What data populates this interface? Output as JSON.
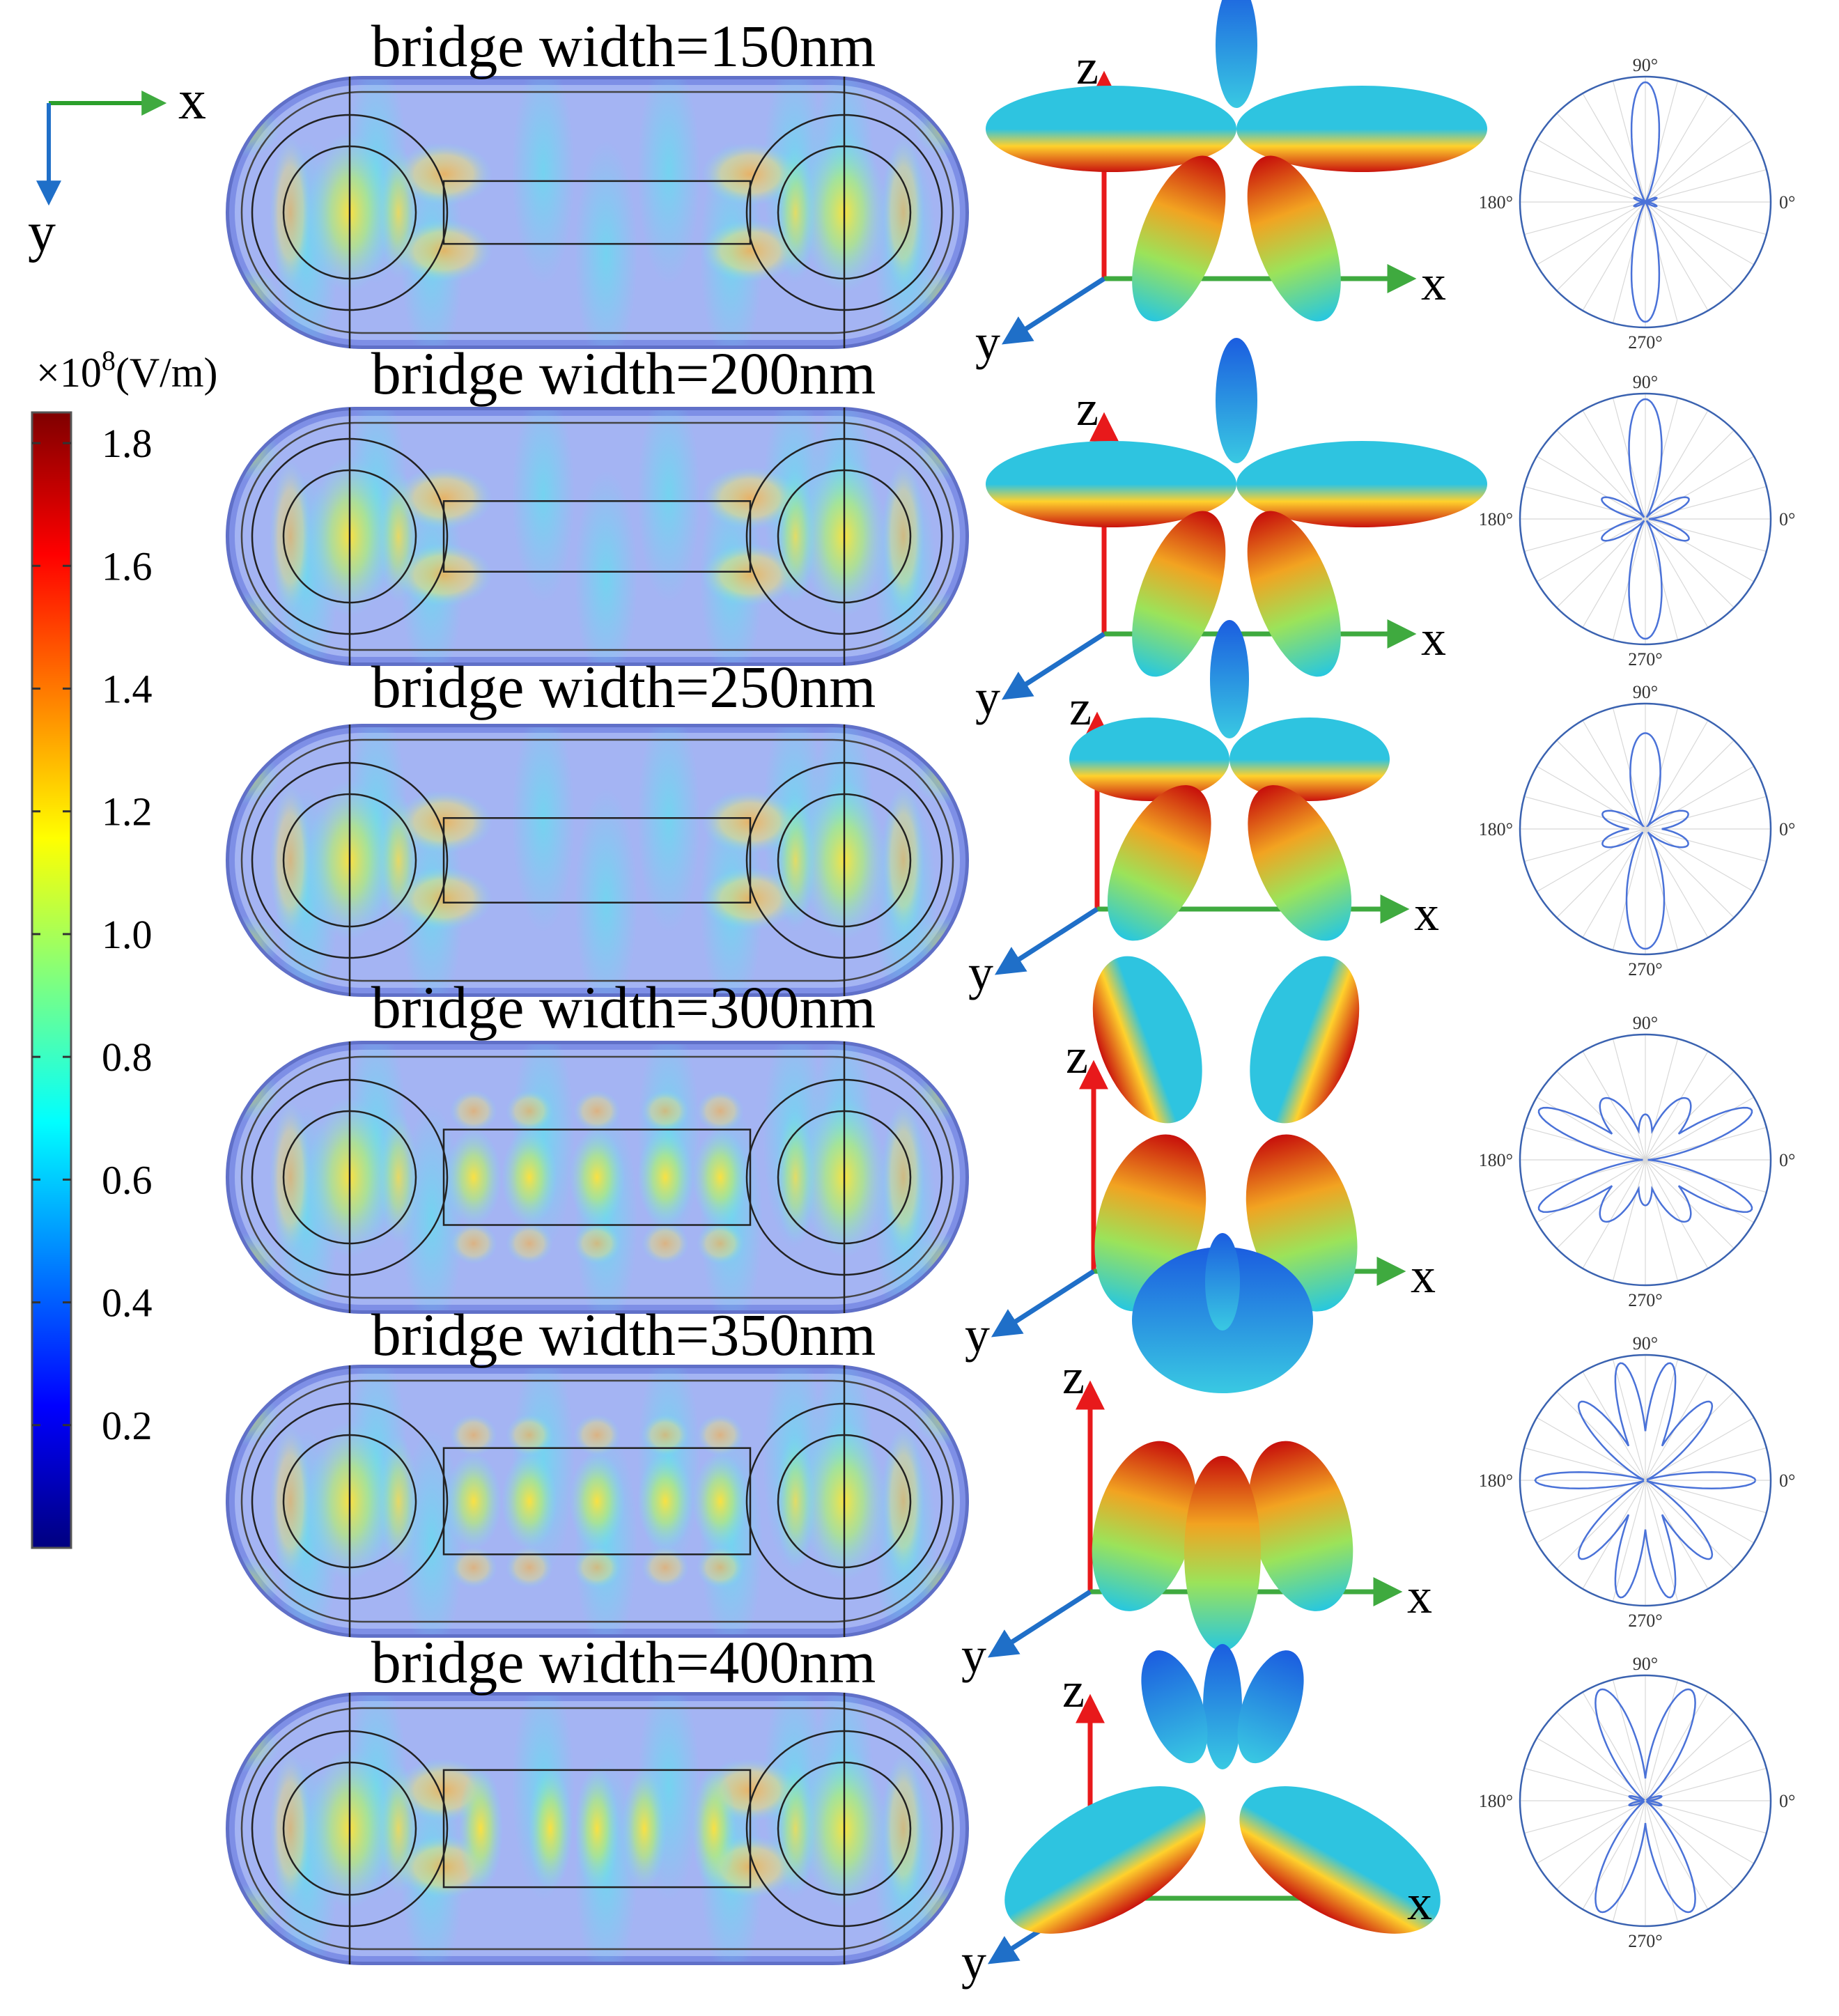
{
  "axes_legend": {
    "x_label": "x",
    "y_label": "y",
    "x_color": "#2ca02c",
    "y_color": "#1f6fc8"
  },
  "colorbar": {
    "unit_prefix": "×10",
    "unit_exponent": "8",
    "unit_suffix": "(V/m)",
    "ticks": [
      "1.8",
      "1.6",
      "1.4",
      "1.2",
      "1.0",
      "0.8",
      "0.6",
      "0.4",
      "0.2"
    ],
    "tick_values": [
      1.8,
      1.6,
      1.4,
      1.2,
      1.0,
      0.8,
      0.6,
      0.4,
      0.2
    ],
    "range": [
      0.0,
      1.85
    ],
    "colors": [
      "#00007f",
      "#0000ff",
      "#007fff",
      "#00ffff",
      "#7fff7f",
      "#ffff00",
      "#ff7f00",
      "#ff0000",
      "#7f0000"
    ]
  },
  "panel_axes": {
    "x": "x",
    "y": "y",
    "z": "z",
    "x_color": "#3faa3f",
    "y_color": "#1f6fc8",
    "z_color": "#e8191b"
  },
  "polar_labels": {
    "top": "90°",
    "left": "180°",
    "right": "0°",
    "bottom": "270°"
  },
  "polar_style": {
    "curve_color": "#4a72d8",
    "circle_color": "#3a62b0",
    "grid_color": "#d8d8d8"
  },
  "rows": [
    {
      "title": "bridge width=150nm",
      "bridge_half_height": 0.18,
      "hot_zone": "tips",
      "pattern": [
        {
          "a": 90,
          "r": 1.0,
          "w": 11
        },
        {
          "a": 270,
          "r": 1.0,
          "w": 11
        },
        {
          "a": 160,
          "r": 0.1,
          "w": 8
        },
        {
          "a": 20,
          "r": 0.1,
          "w": 8
        },
        {
          "a": 200,
          "r": 0.1,
          "w": 8
        },
        {
          "a": 340,
          "r": 0.1,
          "w": 8
        }
      ]
    },
    {
      "title": "bridge width=200nm",
      "bridge_half_height": 0.22,
      "hot_zone": "lobes",
      "pattern": [
        {
          "a": 90,
          "r": 1.0,
          "w": 13
        },
        {
          "a": 270,
          "r": 1.0,
          "w": 13
        },
        {
          "a": 155,
          "r": 0.4,
          "w": 11
        },
        {
          "a": 25,
          "r": 0.4,
          "w": 11
        },
        {
          "a": 205,
          "r": 0.4,
          "w": 11
        },
        {
          "a": 335,
          "r": 0.4,
          "w": 11
        }
      ]
    },
    {
      "title": "bridge width=250nm",
      "bridge_half_height": 0.26,
      "hot_zone": "lobes",
      "pattern": [
        {
          "a": 90,
          "r": 0.8,
          "w": 15
        },
        {
          "a": 270,
          "r": 1.0,
          "w": 15
        },
        {
          "a": 160,
          "r": 0.38,
          "w": 14
        },
        {
          "a": 20,
          "r": 0.38,
          "w": 14
        },
        {
          "a": 200,
          "r": 0.38,
          "w": 14
        },
        {
          "a": 340,
          "r": 0.38,
          "w": 14
        }
      ]
    },
    {
      "title": "bridge width=300nm",
      "bridge_half_height": 0.3,
      "hot_zone": "center",
      "pattern": [
        {
          "a": 55,
          "r": 0.62,
          "w": 16
        },
        {
          "a": 125,
          "r": 0.62,
          "w": 16
        },
        {
          "a": 235,
          "r": 0.62,
          "w": 16
        },
        {
          "a": 305,
          "r": 0.62,
          "w": 16
        },
        {
          "a": 25,
          "r": 0.98,
          "w": 9
        },
        {
          "a": 155,
          "r": 0.98,
          "w": 9
        },
        {
          "a": 205,
          "r": 0.98,
          "w": 9
        },
        {
          "a": 335,
          "r": 0.98,
          "w": 9
        },
        {
          "a": 90,
          "r": 0.38,
          "w": 14
        },
        {
          "a": 270,
          "r": 0.38,
          "w": 14
        }
      ]
    },
    {
      "title": "bridge width=350nm",
      "bridge_half_height": 0.34,
      "hot_zone": "center",
      "pattern": [
        {
          "a": 78,
          "r": 1.0,
          "w": 9
        },
        {
          "a": 102,
          "r": 1.0,
          "w": 9
        },
        {
          "a": 258,
          "r": 1.0,
          "w": 9
        },
        {
          "a": 282,
          "r": 1.0,
          "w": 9
        },
        {
          "a": 50,
          "r": 0.85,
          "w": 10
        },
        {
          "a": 130,
          "r": 0.85,
          "w": 10
        },
        {
          "a": 230,
          "r": 0.85,
          "w": 10
        },
        {
          "a": 310,
          "r": 0.85,
          "w": 10
        },
        {
          "a": 0,
          "r": 0.92,
          "w": 7
        },
        {
          "a": 180,
          "r": 0.92,
          "w": 7
        }
      ]
    },
    {
      "title": "bridge width=400nm",
      "bridge_half_height": 0.38,
      "hot_zone": "tips",
      "pattern": [
        {
          "a": 68,
          "r": 1.0,
          "w": 12
        },
        {
          "a": 112,
          "r": 1.0,
          "w": 12
        },
        {
          "a": 248,
          "r": 1.0,
          "w": 12
        },
        {
          "a": 292,
          "r": 1.0,
          "w": 12
        },
        {
          "a": 165,
          "r": 0.14,
          "w": 7
        },
        {
          "a": 15,
          "r": 0.14,
          "w": 7
        },
        {
          "a": 195,
          "r": 0.14,
          "w": 7
        },
        {
          "a": 345,
          "r": 0.14,
          "w": 7
        }
      ]
    }
  ]
}
